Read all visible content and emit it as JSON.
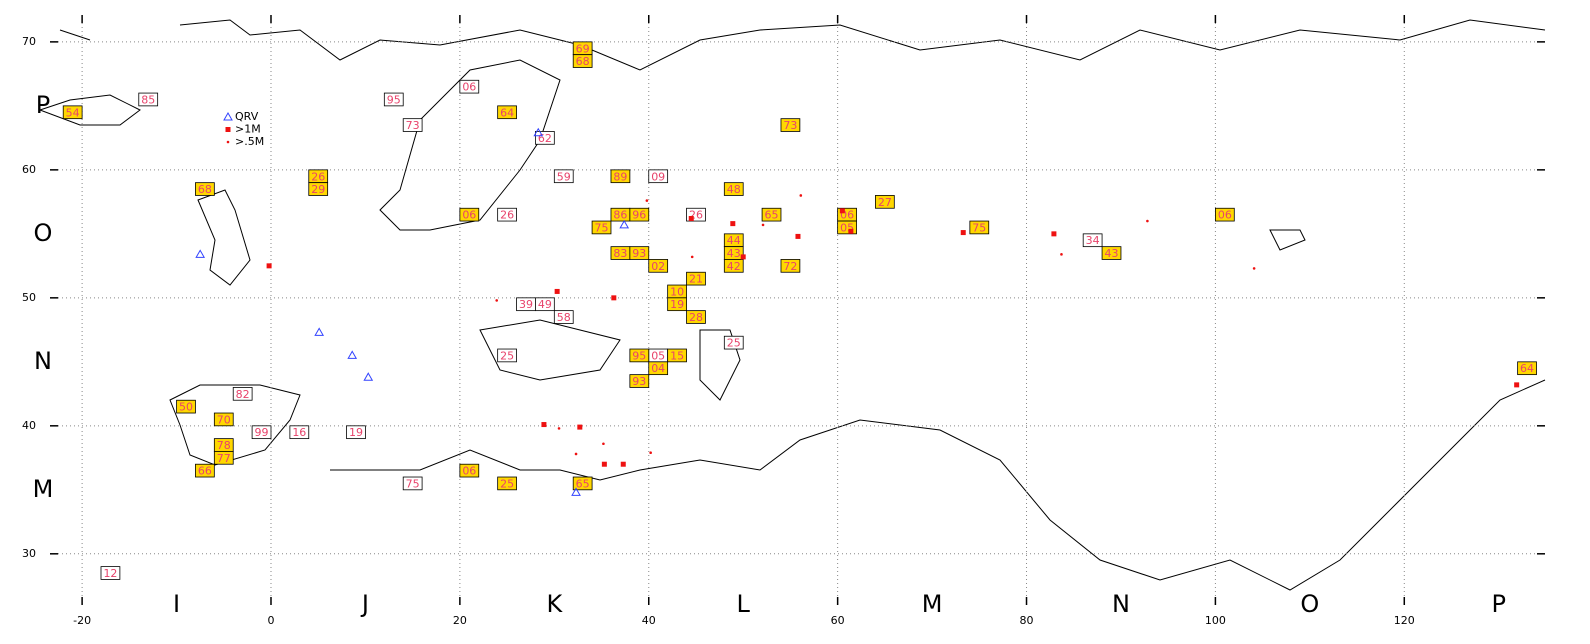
{
  "chart_data": {
    "type": "map",
    "xlim": [
      -23.4,
      134.9
    ],
    "ylim": [
      26.0,
      72.1
    ],
    "xticks": [
      -20,
      0,
      20,
      40,
      60,
      80,
      100,
      120
    ],
    "yticks": [
      30,
      40,
      50,
      60,
      70
    ],
    "grid": true,
    "x_fields": [
      "I",
      "J",
      "K",
      "L",
      "M",
      "N",
      "O",
      "P"
    ],
    "y_fields": [
      "M",
      "N",
      "O",
      "P"
    ],
    "square_fill": "#ffd700",
    "square_text_color": "#e8436b",
    "squares": [
      {
        "lon": 132,
        "lat": 44,
        "label": "64",
        "worked": true
      },
      {
        "lon": 100,
        "lat": 56,
        "label": "06",
        "worked": true
      },
      {
        "lon": 74,
        "lat": 55,
        "label": "75",
        "worked": true
      },
      {
        "lon": 86,
        "lat": 54,
        "label": "34",
        "worked": false
      },
      {
        "lon": 88,
        "lat": 53,
        "label": "43",
        "worked": true
      },
      {
        "lon": 64,
        "lat": 57,
        "label": "27",
        "worked": true
      },
      {
        "lon": 54,
        "lat": 63,
        "label": "73",
        "worked": true
      },
      {
        "lon": 48,
        "lat": 58,
        "label": "48",
        "worked": true
      },
      {
        "lon": 44,
        "lat": 56,
        "label": "26",
        "worked": false
      },
      {
        "lon": 52,
        "lat": 56,
        "label": "65",
        "worked": true
      },
      {
        "lon": 60,
        "lat": 56,
        "label": "06",
        "worked": true
      },
      {
        "lon": 60,
        "lat": 55,
        "label": "05",
        "worked": true
      },
      {
        "lon": 48,
        "lat": 54,
        "label": "44",
        "worked": true
      },
      {
        "lon": 48,
        "lat": 53,
        "label": "43",
        "worked": true
      },
      {
        "lon": 48,
        "lat": 52,
        "label": "42",
        "worked": true
      },
      {
        "lon": 54,
        "lat": 52,
        "label": "72",
        "worked": true
      },
      {
        "lon": 44,
        "lat": 51,
        "label": "21",
        "worked": true
      },
      {
        "lon": 42,
        "lat": 50,
        "label": "10",
        "worked": true
      },
      {
        "lon": 42,
        "lat": 49,
        "label": "19",
        "worked": true
      },
      {
        "lon": 44,
        "lat": 48,
        "label": "28",
        "worked": true
      },
      {
        "lon": 48,
        "lat": 46,
        "label": "25",
        "worked": false
      },
      {
        "lon": 20,
        "lat": 66,
        "label": "06",
        "worked": false
      },
      {
        "lon": 32,
        "lat": 69,
        "label": "69",
        "worked": true
      },
      {
        "lon": 32,
        "lat": 68,
        "label": "68",
        "worked": true
      },
      {
        "lon": 24,
        "lat": 64,
        "label": "64",
        "worked": true
      },
      {
        "lon": -14,
        "lat": 65,
        "label": "85",
        "worked": false
      },
      {
        "lon": -22,
        "lat": 64,
        "label": "54",
        "worked": true
      },
      {
        "lon": -18,
        "lat": 28,
        "label": "12",
        "worked": false
      },
      {
        "lon": 40,
        "lat": 45,
        "label": "05",
        "worked": false
      },
      {
        "lon": 42,
        "lat": 45,
        "label": "15",
        "worked": true
      },
      {
        "lon": 38,
        "lat": 45,
        "label": "95",
        "worked": true
      },
      {
        "lon": 40,
        "lat": 44,
        "label": "04",
        "worked": true
      },
      {
        "lon": 38,
        "lat": 43,
        "label": "93",
        "worked": true
      },
      {
        "lon": 36,
        "lat": 59,
        "label": "89",
        "worked": true
      },
      {
        "lon": 40,
        "lat": 59,
        "label": "09",
        "worked": false
      },
      {
        "lon": 30,
        "lat": 59,
        "label": "59",
        "worked": false
      },
      {
        "lon": 32,
        "lat": 35,
        "label": "65",
        "worked": true
      },
      {
        "lon": 20,
        "lat": 36,
        "label": "06",
        "worked": true
      },
      {
        "lon": 24,
        "lat": 35,
        "label": "25",
        "worked": true
      },
      {
        "lon": 28,
        "lat": 62,
        "label": "62",
        "worked": false
      },
      {
        "lon": 24,
        "lat": 56,
        "label": "26",
        "worked": false
      },
      {
        "lon": 40,
        "lat": 52,
        "label": "02",
        "worked": true
      },
      {
        "lon": 30,
        "lat": 48,
        "label": "58",
        "worked": false
      },
      {
        "lon": 14,
        "lat": 35,
        "label": "75",
        "worked": false
      },
      {
        "lon": 2,
        "lat": 39,
        "label": "16",
        "worked": false
      },
      {
        "lon": 8,
        "lat": 39,
        "label": "19",
        "worked": false
      },
      {
        "lon": -8,
        "lat": 58,
        "label": "68",
        "worked": true
      },
      {
        "lon": 4,
        "lat": 59,
        "label": "26",
        "worked": true
      },
      {
        "lon": 4,
        "lat": 58,
        "label": "29",
        "worked": true
      },
      {
        "lon": 14,
        "lat": 63,
        "label": "73",
        "worked": false
      },
      {
        "lon": 12,
        "lat": 65,
        "label": "95",
        "worked": false
      },
      {
        "lon": 20,
        "lat": 56,
        "label": "06",
        "worked": true
      },
      {
        "lon": 26,
        "lat": 49,
        "label": "39",
        "worked": false
      },
      {
        "lon": 28,
        "lat": 49,
        "label": "49",
        "worked": false
      },
      {
        "lon": 24,
        "lat": 45,
        "label": "25",
        "worked": false
      },
      {
        "lon": -10,
        "lat": 41,
        "label": "50",
        "worked": true
      },
      {
        "lon": -6,
        "lat": 40,
        "label": "70",
        "worked": true
      },
      {
        "lon": -6,
        "lat": 38,
        "label": "78",
        "worked": true
      },
      {
        "lon": -6,
        "lat": 37,
        "label": "77",
        "worked": true
      },
      {
        "lon": -8,
        "lat": 36,
        "label": "66",
        "worked": true
      },
      {
        "lon": -4,
        "lat": 42,
        "label": "82",
        "worked": false
      },
      {
        "lon": -2,
        "lat": 39,
        "label": "99",
        "worked": false
      },
      {
        "lon": 36,
        "lat": 53,
        "label": "83",
        "worked": true
      },
      {
        "lon": 38,
        "lat": 53,
        "label": "93",
        "worked": true
      },
      {
        "lon": 36,
        "lat": 56,
        "label": "86",
        "worked": true
      },
      {
        "lon": 38,
        "lat": 56,
        "label": "96",
        "worked": true
      },
      {
        "lon": 34,
        "lat": 55,
        "label": "75",
        "worked": true
      }
    ],
    "series": [
      {
        "name": "QRV",
        "color": "#3344ff",
        "marker": "triangle",
        "lon": [
          32.3,
          28.3,
          -7.5,
          5.1,
          37.4,
          8.6,
          10.3
        ],
        "lat": [
          34.8,
          62.9,
          53.4,
          47.3,
          55.7,
          45.5,
          43.8
        ]
      },
      {
        "name": ">1M",
        "color": "#ee1111",
        "marker": "square",
        "lon": [
          48.9,
          55.8,
          73.3,
          82.9,
          60.5,
          61.4,
          44.5,
          50.0,
          32.7,
          37.3,
          35.3,
          28.9,
          131.9,
          -0.2,
          36.3,
          30.3
        ],
        "lat": [
          55.8,
          54.8,
          55.1,
          55.0,
          56.8,
          55.2,
          56.2,
          53.2,
          39.9,
          37.0,
          37.0,
          40.1,
          43.2,
          52.5,
          50.0,
          50.5
        ]
      },
      {
        "name": ">.5M",
        "color": "#ee1111",
        "marker": "dot",
        "lon": [
          56.1,
          92.8,
          104.1,
          83.7,
          52.1,
          44.6,
          23.9,
          30.5,
          40.2,
          35.2,
          32.3,
          39.8
        ],
        "lat": [
          58.0,
          56.0,
          52.3,
          53.4,
          55.7,
          53.2,
          49.8,
          39.8,
          37.9,
          38.6,
          37.8,
          57.6
        ]
      }
    ]
  }
}
